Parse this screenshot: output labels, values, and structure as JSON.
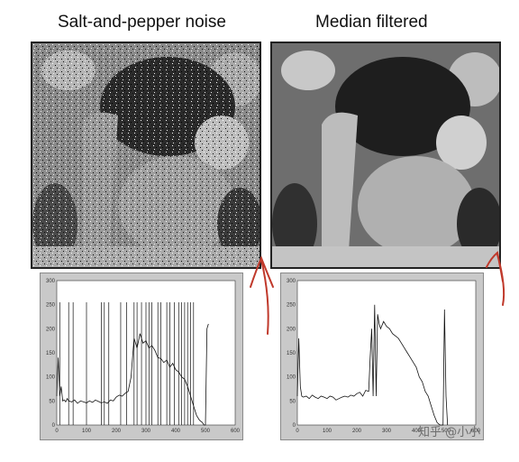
{
  "titles": {
    "left": "Salt-and-pepper noise",
    "right": "Median filtered"
  },
  "watermark": "知乎 @小小",
  "annotation_color": "#c0392b",
  "chart_data": [
    {
      "type": "line",
      "title": "",
      "xlabel": "",
      "ylabel": "",
      "xlim": [
        0,
        600
      ],
      "ylim": [
        0,
        300
      ],
      "xticks": [
        0,
        100,
        200,
        300,
        400,
        500,
        600
      ],
      "yticks": [
        0,
        50,
        100,
        150,
        200,
        250,
        300
      ],
      "x": [
        0,
        5,
        10,
        15,
        20,
        25,
        30,
        35,
        40,
        50,
        60,
        70,
        80,
        90,
        100,
        110,
        120,
        130,
        140,
        150,
        160,
        170,
        180,
        190,
        200,
        210,
        220,
        230,
        240,
        250,
        255,
        260,
        270,
        280,
        290,
        300,
        310,
        320,
        330,
        340,
        350,
        360,
        370,
        380,
        390,
        400,
        410,
        420,
        430,
        440,
        450,
        460,
        470,
        480,
        490,
        495,
        500,
        505,
        510
      ],
      "y": [
        60,
        140,
        60,
        80,
        50,
        52,
        48,
        55,
        50,
        48,
        52,
        45,
        50,
        48,
        46,
        50,
        47,
        52,
        49,
        46,
        48,
        45,
        52,
        50,
        58,
        62,
        60,
        66,
        70,
        100,
        140,
        180,
        160,
        190,
        170,
        175,
        160,
        165,
        155,
        140,
        138,
        130,
        135,
        120,
        128,
        115,
        110,
        100,
        95,
        80,
        60,
        40,
        20,
        10,
        5,
        0,
        0,
        200,
        210
      ],
      "spikes": [
        10,
        40,
        55,
        100,
        150,
        160,
        175,
        215,
        235,
        260,
        270,
        285,
        300,
        310,
        320,
        340,
        350,
        370,
        380,
        395,
        410,
        420,
        430,
        440,
        450,
        460
      ]
    },
    {
      "type": "line",
      "title": "",
      "xlabel": "",
      "ylabel": "",
      "xlim": [
        0,
        600
      ],
      "ylim": [
        0,
        300
      ],
      "xticks": [
        0,
        100,
        200,
        300,
        400,
        500,
        600
      ],
      "yticks": [
        0,
        50,
        100,
        150,
        200,
        250,
        300
      ],
      "x": [
        0,
        5,
        10,
        15,
        20,
        30,
        40,
        50,
        60,
        70,
        80,
        90,
        100,
        110,
        120,
        130,
        140,
        150,
        160,
        170,
        180,
        190,
        200,
        210,
        220,
        230,
        240,
        245,
        250,
        255,
        260,
        265,
        270,
        275,
        280,
        290,
        300,
        310,
        320,
        330,
        340,
        350,
        360,
        370,
        380,
        390,
        400,
        410,
        420,
        430,
        440,
        450,
        460,
        470,
        480,
        490,
        495,
        500,
        505
      ],
      "y": [
        60,
        180,
        80,
        60,
        58,
        60,
        55,
        62,
        58,
        55,
        60,
        58,
        55,
        60,
        58,
        52,
        55,
        58,
        60,
        58,
        62,
        60,
        65,
        68,
        60,
        72,
        70,
        140,
        200,
        60,
        250,
        60,
        230,
        210,
        200,
        215,
        205,
        200,
        190,
        185,
        180,
        170,
        160,
        150,
        140,
        130,
        120,
        100,
        90,
        70,
        60,
        40,
        20,
        5,
        0,
        0,
        240,
        60,
        0
      ]
    }
  ]
}
